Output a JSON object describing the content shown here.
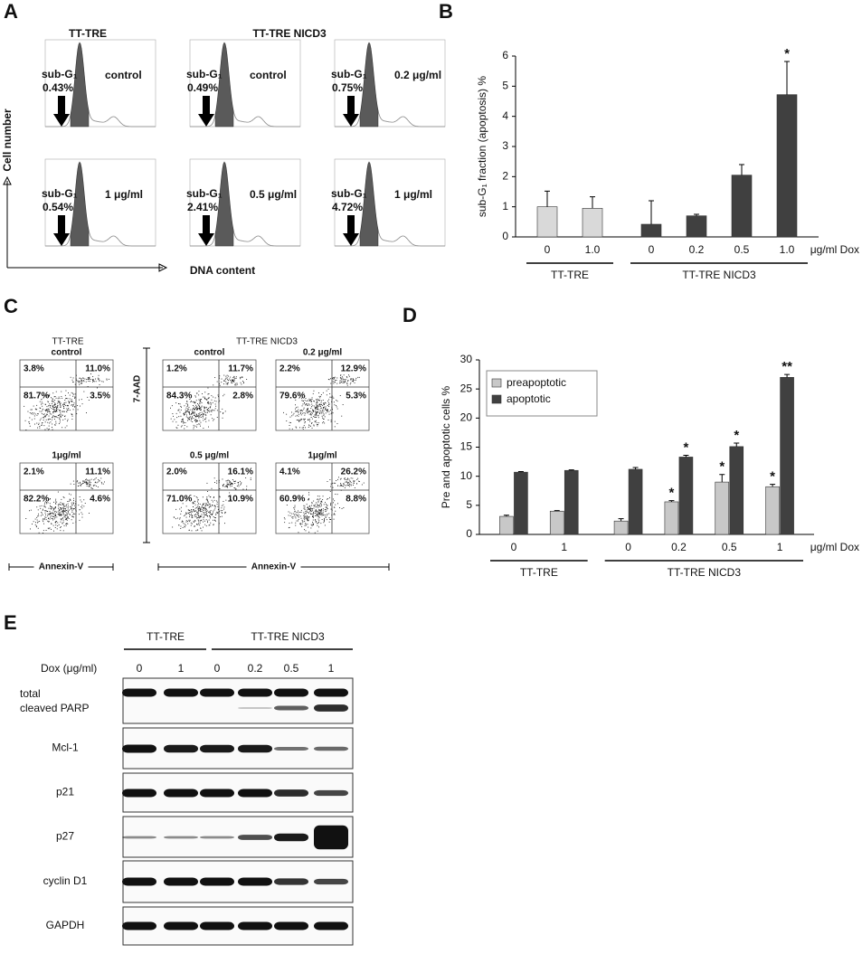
{
  "panel_a": {
    "letter": "A",
    "groups": [
      "TT-TRE",
      "TT-TRE NICD3"
    ],
    "y_label": "Cell number",
    "x_label": "DNA content",
    "plots": [
      {
        "label": "sub-G₁",
        "percent": "0.43%",
        "condition": "control"
      },
      {
        "label": "sub-G₁",
        "percent": "0.49%",
        "condition": "control"
      },
      {
        "label": "sub-G₁",
        "percent": "0.75%",
        "condition": "0.2 μg/ml"
      },
      {
        "label": "sub-G₁",
        "percent": "0.54%",
        "condition": "1 μg/ml"
      },
      {
        "label": "sub-G₁",
        "percent": "2.41%",
        "condition": "0.5 μg/ml"
      },
      {
        "label": "sub-G₁",
        "percent": "4.72%",
        "condition": "1 μg/ml"
      }
    ]
  },
  "chart_data": [
    {
      "panel": "B",
      "type": "bar",
      "y_label": "sub-G₁ fraction (apoptosis) %",
      "categories": [
        "0",
        "1.0",
        "0",
        "0.2",
        "0.5",
        "1.0"
      ],
      "values": [
        1.0,
        0.95,
        0.42,
        0.7,
        2.05,
        4.72
      ],
      "errors": [
        0.52,
        0.38,
        0.78,
        0.05,
        0.35,
        1.1
      ],
      "significance": [
        null,
        null,
        null,
        null,
        null,
        "*"
      ],
      "colors": [
        "#d9d9d9",
        "#d9d9d9",
        "#404040",
        "#404040",
        "#404040",
        "#404040"
      ],
      "ylim": [
        0,
        6
      ],
      "yticks": [
        0,
        1,
        2,
        3,
        4,
        5,
        6
      ],
      "unit_label": "μg/ml Dox",
      "groups": [
        {
          "label": "TT-TRE",
          "size": 2
        },
        {
          "label": "TT-TRE NICD3",
          "size": 4
        }
      ]
    },
    {
      "panel": "D",
      "type": "grouped_bar",
      "y_label": "Pre and apoptotic cells  %",
      "categories": [
        "0",
        "1",
        "0",
        "0.2",
        "0.5",
        "1"
      ],
      "series": [
        {
          "name": "preapoptotic",
          "color": "#c8c8c8",
          "values": [
            3.1,
            4.0,
            2.3,
            5.6,
            9.0,
            8.2
          ],
          "errors": [
            0.2,
            0.1,
            0.4,
            0.2,
            1.3,
            0.4
          ],
          "significance": [
            null,
            null,
            null,
            "*",
            "*",
            "*"
          ]
        },
        {
          "name": "apoptotic",
          "color": "#404040",
          "values": [
            10.7,
            11.0,
            11.2,
            13.3,
            15.1,
            27.0
          ],
          "errors": [
            0.1,
            0.1,
            0.3,
            0.3,
            0.6,
            0.5
          ],
          "significance": [
            null,
            null,
            null,
            "*",
            "*",
            "**"
          ]
        }
      ],
      "ylim": [
        0,
        30
      ],
      "yticks": [
        0,
        5,
        10,
        15,
        20,
        25,
        30
      ],
      "legend": "upper left",
      "unit_label": "μg/ml Dox",
      "groups": [
        {
          "label": "TT-TRE",
          "size": 2
        },
        {
          "label": "TT-TRE NICD3",
          "size": 4
        }
      ]
    }
  ],
  "panel_c": {
    "letter": "C",
    "groups": [
      "TT-TRE",
      "TT-TRE NICD3"
    ],
    "y_label": "7-AAD",
    "x_labels": [
      "Annexin-V",
      "Annexin-V"
    ],
    "plots": [
      {
        "condition": "control",
        "quadrants": [
          "3.8%",
          "11.0%",
          "81.7%",
          "3.5%"
        ]
      },
      {
        "condition": "1μg/ml",
        "quadrants": [
          "2.1%",
          "11.1%",
          "82.2%",
          "4.6%"
        ]
      },
      {
        "condition": "control",
        "quadrants": [
          "1.2%",
          "11.7%",
          "84.3%",
          "2.8%"
        ]
      },
      {
        "condition": "0.2 μg/ml",
        "quadrants": [
          "2.2%",
          "12.9%",
          "79.6%",
          "5.3%"
        ]
      },
      {
        "condition": "0.5 μg/ml",
        "quadrants": [
          "2.0%",
          "16.1%",
          "71.0%",
          "10.9%"
        ]
      },
      {
        "condition": "1μg/ml",
        "quadrants": [
          "4.1%",
          "26.2%",
          "60.9%",
          "8.8%"
        ]
      }
    ]
  },
  "panel_e": {
    "letter": "E",
    "groups": [
      "TT-TRE",
      "TT-TRE NICD3"
    ],
    "dose_label": "Dox (μg/ml)",
    "lanes": [
      "0",
      "1",
      "0",
      "0.2",
      "0.5",
      "1"
    ],
    "blots": [
      [
        "total",
        "cleaved PARP"
      ],
      [
        "Mcl-1"
      ],
      [
        "p21"
      ],
      [
        "p27"
      ],
      [
        "cyclin D1"
      ],
      [
        "GAPDH"
      ]
    ]
  }
}
